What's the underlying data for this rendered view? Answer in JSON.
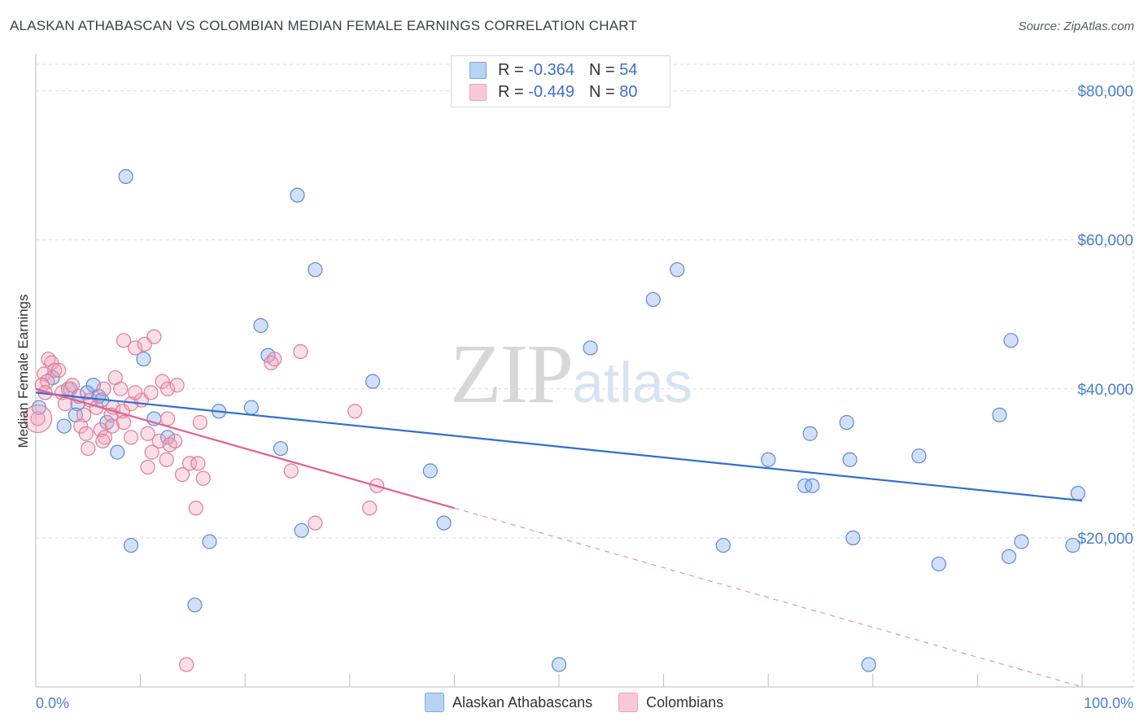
{
  "header": {
    "title": "ALASKAN ATHABASCAN VS COLOMBIAN MEDIAN FEMALE EARNINGS CORRELATION CHART",
    "source": "Source: ZipAtlas.com"
  },
  "legend": {
    "rows": [
      {
        "r_label": "R =",
        "r_value": "-0.364",
        "n_label": "N =",
        "n_value": "54",
        "color": "#7aa6e6"
      },
      {
        "r_label": "R =",
        "r_value": "-0.449",
        "n_label": "N =",
        "n_value": "80",
        "color": "#f0a0b8"
      }
    ]
  },
  "watermark": {
    "zip": "ZIP",
    "atlas": "atlas"
  },
  "chart_data": {
    "type": "scatter",
    "title": "ALASKAN ATHABASCAN VS COLOMBIAN MEDIAN FEMALE EARNINGS CORRELATION CHART",
    "ylabel": "Median Female Earnings",
    "xlabel": "",
    "xlim": [
      0,
      100
    ],
    "ylim": [
      0,
      84000
    ],
    "x_tick_labels": [
      "0.0%",
      "100.0%"
    ],
    "y_ticks": [
      {
        "value": 20000,
        "label": "$20,000"
      },
      {
        "value": 40000,
        "label": "$40,000"
      },
      {
        "value": 60000,
        "label": "$60,000"
      },
      {
        "value": 80000,
        "label": "$80,000"
      }
    ],
    "grid": true,
    "series": [
      {
        "name": "Alaskan Athabascans",
        "color": "#7aa6e6",
        "stroke": "#5a8ad6",
        "trend": {
          "x0": 0,
          "y0": 39500,
          "x1": 100,
          "y1": 25000,
          "color": "#2f6fd0"
        },
        "points": [
          [
            8.6,
            68500
          ],
          [
            25,
            66000
          ],
          [
            26.7,
            56000
          ],
          [
            61.3,
            56000
          ],
          [
            59,
            52000
          ],
          [
            21.5,
            48500
          ],
          [
            93.2,
            46500
          ],
          [
            53,
            45500
          ],
          [
            22.2,
            44500
          ],
          [
            10.3,
            44000
          ],
          [
            1.6,
            41500
          ],
          [
            3.3,
            40000
          ],
          [
            5.5,
            40500
          ],
          [
            32.2,
            41000
          ],
          [
            4.9,
            39500
          ],
          [
            6,
            39000
          ],
          [
            4,
            38000
          ],
          [
            0.3,
            37500
          ],
          [
            17.5,
            37000
          ],
          [
            20.6,
            37500
          ],
          [
            6.3,
            38500
          ],
          [
            3.8,
            36500
          ],
          [
            11.3,
            36000
          ],
          [
            92.1,
            36500
          ],
          [
            77.5,
            35500
          ],
          [
            2.7,
            35000
          ],
          [
            6.8,
            35500
          ],
          [
            74,
            34000
          ],
          [
            12.6,
            33500
          ],
          [
            23.4,
            32000
          ],
          [
            7.8,
            31500
          ],
          [
            70,
            30500
          ],
          [
            77.8,
            30500
          ],
          [
            84.4,
            31000
          ],
          [
            37.7,
            29000
          ],
          [
            73.5,
            27000
          ],
          [
            74.2,
            27000
          ],
          [
            99.6,
            26000
          ],
          [
            39,
            22000
          ],
          [
            25.4,
            21000
          ],
          [
            16.6,
            19500
          ],
          [
            78.1,
            20000
          ],
          [
            94.2,
            19500
          ],
          [
            9.1,
            19000
          ],
          [
            65.7,
            19000
          ],
          [
            99.1,
            19000
          ],
          [
            93,
            17500
          ],
          [
            86.3,
            16500
          ],
          [
            15.2,
            11000
          ],
          [
            50,
            3000
          ],
          [
            79.6,
            3000
          ]
        ]
      },
      {
        "name": "Colombians",
        "color": "#f0a0b8",
        "stroke": "#e07a9a",
        "trend": {
          "x0": 0,
          "y0": 40000,
          "x1": 40,
          "y1": 24000,
          "dash_to_x": 100,
          "dash_to_y": 0,
          "color": "#e06090"
        },
        "points": [
          [
            0.2,
            36000
          ],
          [
            1.2,
            44000
          ],
          [
            1.5,
            43500
          ],
          [
            1.8,
            42500
          ],
          [
            0.8,
            42000
          ],
          [
            2.2,
            42500
          ],
          [
            1.1,
            41000
          ],
          [
            0.6,
            40500
          ],
          [
            0.9,
            39500
          ],
          [
            2.5,
            39500
          ],
          [
            3.1,
            40000
          ],
          [
            3.5,
            40500
          ],
          [
            4.1,
            39000
          ],
          [
            2.8,
            38000
          ],
          [
            5.2,
            38500
          ],
          [
            5.8,
            37500
          ],
          [
            4.6,
            36500
          ],
          [
            7.4,
            37500
          ],
          [
            7.2,
            36500
          ],
          [
            8.3,
            37000
          ],
          [
            9.1,
            38000
          ],
          [
            10.1,
            38500
          ],
          [
            9.5,
            39500
          ],
          [
            11,
            39500
          ],
          [
            12.1,
            41000
          ],
          [
            12.6,
            40000
          ],
          [
            13.5,
            40500
          ],
          [
            7.6,
            41500
          ],
          [
            8.1,
            40000
          ],
          [
            6.5,
            40000
          ],
          [
            8.4,
            46500
          ],
          [
            9.5,
            45500
          ],
          [
            10.4,
            46000
          ],
          [
            11.3,
            47000
          ],
          [
            22.5,
            43500
          ],
          [
            22.8,
            44000
          ],
          [
            25.3,
            45000
          ],
          [
            7.3,
            35000
          ],
          [
            6.2,
            34500
          ],
          [
            4.3,
            35000
          ],
          [
            4.8,
            34000
          ],
          [
            6.6,
            33500
          ],
          [
            8.4,
            35500
          ],
          [
            9.1,
            33500
          ],
          [
            10.7,
            34000
          ],
          [
            11.8,
            33000
          ],
          [
            12.8,
            32500
          ],
          [
            12.6,
            36000
          ],
          [
            15.7,
            35500
          ],
          [
            5,
            32000
          ],
          [
            6.4,
            33000
          ],
          [
            11.1,
            31500
          ],
          [
            12.5,
            30500
          ],
          [
            13.3,
            33000
          ],
          [
            14.7,
            30000
          ],
          [
            15.5,
            30000
          ],
          [
            10.7,
            29500
          ],
          [
            14,
            28500
          ],
          [
            16,
            28000
          ],
          [
            24.4,
            29000
          ],
          [
            30.5,
            37000
          ],
          [
            32.6,
            27000
          ],
          [
            31.9,
            24000
          ],
          [
            15.3,
            24000
          ],
          [
            26.7,
            22000
          ],
          [
            14.4,
            3000
          ]
        ]
      }
    ]
  },
  "bottom_legend": {
    "items": [
      {
        "label": "Alaskan Athabascans",
        "color": "#b8d2f4",
        "border": "#7aa6e6"
      },
      {
        "label": "Colombians",
        "color": "#f9c8d6",
        "border": "#f0a0b8"
      }
    ]
  }
}
